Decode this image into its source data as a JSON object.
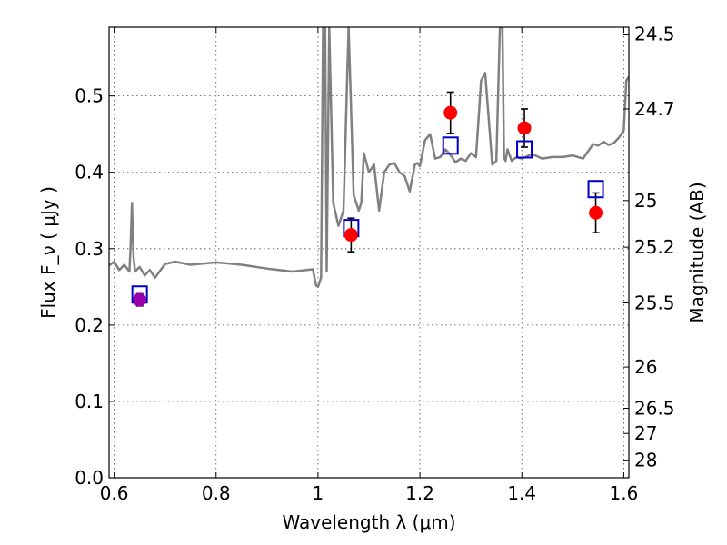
{
  "chart_data": {
    "type": "scatter",
    "xlabel": "Wavelength λ (μm)",
    "ylabel": "Flux F_ν ( μJy )",
    "ylabel_right": "Magnitude (AB)",
    "xlim": [
      0.59,
      1.61
    ],
    "ylim": [
      0.0,
      0.59
    ],
    "grid": true,
    "x_ticks": [
      0.6,
      0.8,
      1.0,
      1.2,
      1.4,
      1.6
    ],
    "x_tick_labels": [
      "0.6",
      "0.8",
      "1",
      "1.2",
      "1.4",
      "1.6"
    ],
    "y_ticks": [
      0.0,
      0.1,
      0.2,
      0.3,
      0.4,
      0.5
    ],
    "y_tick_labels": [
      "0.0",
      "0.1",
      "0.2",
      "0.3",
      "0.4",
      "0.5"
    ],
    "right_ticks": [
      {
        "label": "24.5",
        "flux": 0.581
      },
      {
        "label": "24.7",
        "flux": 0.483
      },
      {
        "label": "25",
        "flux": 0.363
      },
      {
        "label": "25.2",
        "flux": 0.302
      },
      {
        "label": "25.5",
        "flux": 0.229
      },
      {
        "label": "26",
        "flux": 0.145
      },
      {
        "label": "26.5",
        "flux": 0.091
      },
      {
        "label": "27",
        "flux": 0.058
      },
      {
        "label": "28",
        "flux": 0.023
      }
    ],
    "series": [
      {
        "kind": "line",
        "color": "#808080",
        "x": [
          0.59,
          0.6,
          0.61,
          0.62,
          0.63,
          0.632,
          0.635,
          0.638,
          0.641,
          0.65,
          0.66,
          0.67,
          0.68,
          0.7,
          0.72,
          0.75,
          0.8,
          0.85,
          0.9,
          0.95,
          0.99,
          0.996,
          1.0,
          1.006,
          1.01,
          1.014,
          1.017,
          1.022,
          1.03,
          1.04,
          1.05,
          1.06,
          1.07,
          1.08,
          1.085,
          1.09,
          1.1,
          1.11,
          1.12,
          1.13,
          1.14,
          1.15,
          1.16,
          1.17,
          1.18,
          1.19,
          1.195,
          1.2,
          1.21,
          1.22,
          1.23,
          1.24,
          1.25,
          1.26,
          1.27,
          1.28,
          1.29,
          1.3,
          1.31,
          1.32,
          1.328,
          1.335,
          1.342,
          1.35,
          1.357,
          1.362,
          1.365,
          1.368,
          1.372,
          1.38,
          1.39,
          1.4,
          1.42,
          1.44,
          1.46,
          1.48,
          1.5,
          1.52,
          1.54,
          1.55,
          1.56,
          1.57,
          1.58,
          1.59,
          1.6,
          1.605,
          1.61
        ],
        "y": [
          0.278,
          0.283,
          0.272,
          0.279,
          0.27,
          0.3,
          0.36,
          0.29,
          0.27,
          0.276,
          0.265,
          0.272,
          0.262,
          0.28,
          0.283,
          0.279,
          0.282,
          0.279,
          0.274,
          0.27,
          0.273,
          0.252,
          0.25,
          0.262,
          0.59,
          0.59,
          0.27,
          0.59,
          0.36,
          0.33,
          0.35,
          0.59,
          0.37,
          0.35,
          0.36,
          0.425,
          0.4,
          0.41,
          0.35,
          0.4,
          0.41,
          0.412,
          0.4,
          0.395,
          0.375,
          0.41,
          0.412,
          0.408,
          0.442,
          0.45,
          0.418,
          0.42,
          0.43,
          0.423,
          0.413,
          0.418,
          0.415,
          0.425,
          0.42,
          0.52,
          0.53,
          0.47,
          0.41,
          0.415,
          0.59,
          0.59,
          0.42,
          0.415,
          0.43,
          0.415,
          0.42,
          0.418,
          0.424,
          0.418,
          0.42,
          0.42,
          0.422,
          0.418,
          0.437,
          0.435,
          0.44,
          0.436,
          0.438,
          0.445,
          0.455,
          0.52,
          0.525
        ]
      },
      {
        "kind": "model-squares",
        "color": "#0000cc",
        "x": [
          0.65,
          1.065,
          1.26,
          1.405,
          1.545
        ],
        "y": [
          0.24,
          0.327,
          0.435,
          0.43,
          0.378
        ]
      },
      {
        "kind": "observed-points",
        "color": "#ff0000",
        "x": [
          0.65,
          1.065,
          1.26,
          1.405,
          1.545
        ],
        "y": [
          0.233,
          0.318,
          0.478,
          0.458,
          0.347
        ],
        "yerr": [
          0.008,
          0.022,
          0.027,
          0.025,
          0.026
        ],
        "point_colors": [
          "#9900aa",
          "#ff0000",
          "#ff0000",
          "#ff0000",
          "#ff0000"
        ]
      }
    ]
  }
}
